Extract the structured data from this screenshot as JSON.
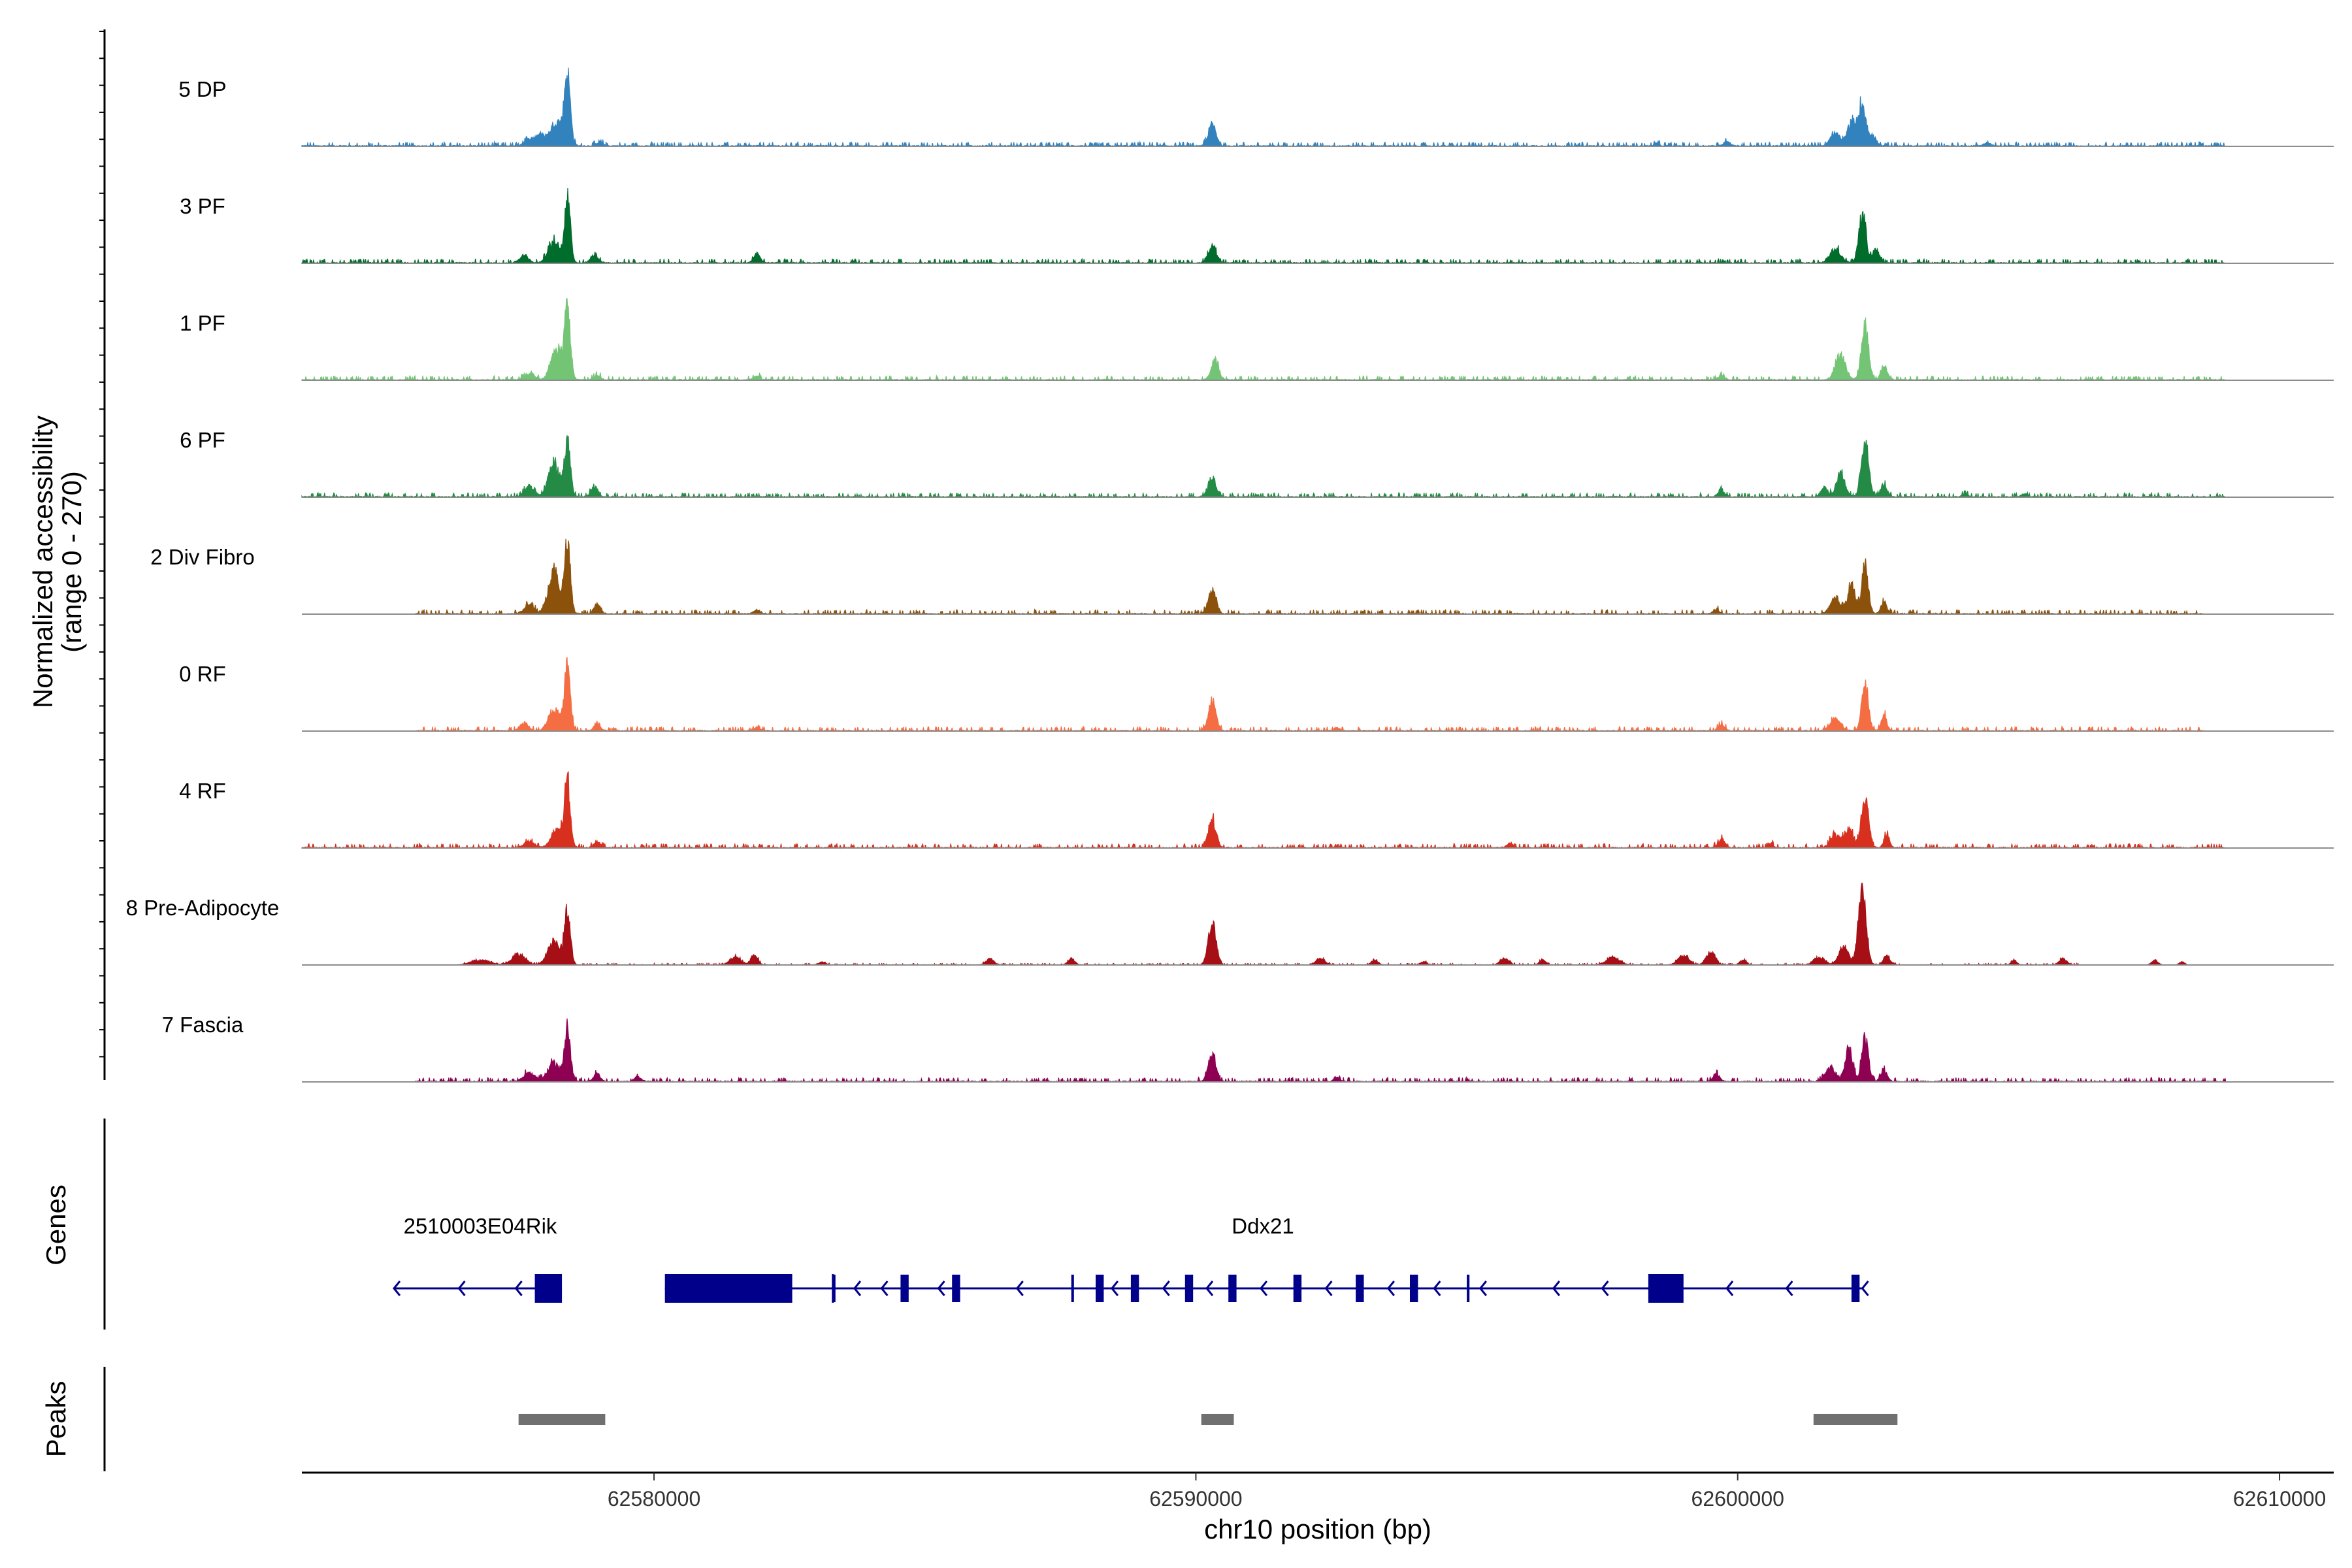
{
  "chart_data": {
    "type": "area",
    "title": "",
    "xlabel": "chr10 position (bp)",
    "ylabel_line1": "Normalized accessibility",
    "ylabel_line2": "(range 0 - 270)",
    "ylim": [
      0,
      270
    ],
    "xlim": [
      62573500,
      62611000
    ],
    "xticks": [
      62580000,
      62590000,
      62600000,
      62610000
    ],
    "xtick_labels": [
      "62580000",
      "62590000",
      "62600000",
      "62610000"
    ],
    "tracks": [
      {
        "name": "5 DP",
        "color": "#3182bd",
        "baseline": 8,
        "noise": [
          62573500,
          62609000
        ],
        "peaks": [
          [
            62578400,
            55,
            225
          ],
          [
            62578200,
            110,
            80
          ],
          [
            62577900,
            90,
            35
          ],
          [
            62577700,
            90,
            20
          ],
          [
            62579000,
            60,
            12
          ],
          [
            62590300,
            70,
            70
          ],
          [
            62601800,
            90,
            40
          ],
          [
            62602100,
            80,
            75
          ],
          [
            62602300,
            70,
            135
          ],
          [
            62602500,
            60,
            30
          ],
          [
            62599800,
            60,
            15
          ],
          [
            62598500,
            40,
            10
          ],
          [
            62604600,
            60,
            10
          ]
        ]
      },
      {
        "name": "3 PF",
        "color": "#006d2c",
        "baseline": 8,
        "noise": [
          62573500,
          62609000
        ],
        "peaks": [
          [
            62578400,
            55,
            210
          ],
          [
            62578150,
            100,
            70
          ],
          [
            62577600,
            80,
            25
          ],
          [
            62578900,
            70,
            25
          ],
          [
            62581900,
            60,
            30
          ],
          [
            62590300,
            70,
            55
          ],
          [
            62601800,
            100,
            45
          ],
          [
            62602300,
            65,
            160
          ],
          [
            62602550,
            60,
            45
          ]
        ]
      },
      {
        "name": "1 PF",
        "color": "#74c476",
        "baseline": 8,
        "noise": [
          62573500,
          62609000
        ],
        "peaks": [
          [
            62578400,
            55,
            230
          ],
          [
            62578200,
            100,
            100
          ],
          [
            62577700,
            90,
            20
          ],
          [
            62578950,
            60,
            15
          ],
          [
            62581900,
            60,
            12
          ],
          [
            62590350,
            70,
            60
          ],
          [
            62599700,
            60,
            15
          ],
          [
            62601900,
            90,
            80
          ],
          [
            62602350,
            65,
            175
          ],
          [
            62602700,
            60,
            45
          ]
        ]
      },
      {
        "name": "6 PF",
        "color": "#238b45",
        "baseline": 8,
        "noise": [
          62573500,
          62609000
        ],
        "peaks": [
          [
            62578400,
            55,
            180
          ],
          [
            62578150,
            100,
            110
          ],
          [
            62577700,
            90,
            35
          ],
          [
            62578900,
            60,
            35
          ],
          [
            62590300,
            70,
            65
          ],
          [
            62599700,
            60,
            20
          ],
          [
            62601600,
            60,
            30
          ],
          [
            62601900,
            80,
            75
          ],
          [
            62602350,
            65,
            200
          ],
          [
            62602700,
            60,
            40
          ],
          [
            62604200,
            50,
            10
          ],
          [
            62605300,
            50,
            10
          ]
        ]
      },
      {
        "name": "2 Div Fibro",
        "color": "#8c510a",
        "baseline": 8,
        "noise": [
          62575600,
          62608600
        ],
        "peaks": [
          [
            62578400,
            55,
            225
          ],
          [
            62578150,
            100,
            130
          ],
          [
            62577700,
            90,
            30
          ],
          [
            62578950,
            60,
            30
          ],
          [
            62581900,
            60,
            12
          ],
          [
            62590300,
            70,
            80
          ],
          [
            62599600,
            50,
            15
          ],
          [
            62601800,
            90,
            50
          ],
          [
            62602100,
            70,
            90
          ],
          [
            62602350,
            60,
            155
          ],
          [
            62602700,
            50,
            40
          ]
        ]
      },
      {
        "name": "0 RF",
        "color": "#f46d43",
        "baseline": 8,
        "noise": [
          62575600,
          62608600
        ],
        "peaks": [
          [
            62578400,
            55,
            205
          ],
          [
            62578150,
            100,
            70
          ],
          [
            62577600,
            80,
            25
          ],
          [
            62578950,
            60,
            20
          ],
          [
            62581900,
            60,
            10
          ],
          [
            62590300,
            70,
            90
          ],
          [
            62592600,
            50,
            10
          ],
          [
            62599700,
            60,
            20
          ],
          [
            62601800,
            90,
            40
          ],
          [
            62602350,
            60,
            165
          ],
          [
            62602700,
            50,
            50
          ]
        ]
      },
      {
        "name": "4 RF",
        "color": "#d7301f",
        "baseline": 8,
        "noise": [
          62573500,
          62609000
        ],
        "peaks": [
          [
            62578400,
            55,
            205
          ],
          [
            62578200,
            100,
            60
          ],
          [
            62577700,
            90,
            20
          ],
          [
            62578950,
            60,
            20
          ],
          [
            62590300,
            70,
            90
          ],
          [
            62595800,
            50,
            15
          ],
          [
            62599700,
            60,
            25
          ],
          [
            62601800,
            90,
            40
          ],
          [
            62602050,
            80,
            60
          ],
          [
            62602350,
            65,
            175
          ],
          [
            62602750,
            50,
            40
          ],
          [
            62600600,
            50,
            15
          ]
        ]
      },
      {
        "name": "8 Pre-Adipocyte",
        "color": "#a50f15",
        "baseline": 3,
        "noise": [
          62576500,
          62606300
        ],
        "peaks": [
          [
            62578400,
            55,
            175
          ],
          [
            62578150,
            110,
            75
          ],
          [
            62577500,
            120,
            35
          ],
          [
            62576800,
            180,
            15
          ],
          [
            62581500,
            100,
            25
          ],
          [
            62581850,
            60,
            35
          ],
          [
            62583100,
            60,
            10
          ],
          [
            62586200,
            70,
            20
          ],
          [
            62587700,
            60,
            20
          ],
          [
            62590300,
            70,
            140
          ],
          [
            62592300,
            80,
            20
          ],
          [
            62593300,
            60,
            15
          ],
          [
            62594200,
            60,
            10
          ],
          [
            62595700,
            80,
            20
          ],
          [
            62596400,
            60,
            15
          ],
          [
            62597700,
            120,
            25
          ],
          [
            62599000,
            100,
            30
          ],
          [
            62599500,
            80,
            40
          ],
          [
            62600100,
            60,
            15
          ],
          [
            62601500,
            100,
            25
          ],
          [
            62601950,
            90,
            60
          ],
          [
            62602300,
            70,
            250
          ],
          [
            62602750,
            60,
            30
          ],
          [
            62605100,
            50,
            15
          ],
          [
            62606000,
            70,
            20
          ],
          [
            62607700,
            60,
            15
          ],
          [
            62608200,
            50,
            10
          ]
        ]
      },
      {
        "name": "7 Fascia",
        "color": "#8e0152",
        "baseline": 8,
        "noise": [
          62575600,
          62609000
        ],
        "peaks": [
          [
            62578400,
            55,
            175
          ],
          [
            62578150,
            110,
            60
          ],
          [
            62577700,
            100,
            30
          ],
          [
            62578950,
            60,
            25
          ],
          [
            62579700,
            60,
            15
          ],
          [
            62590300,
            70,
            85
          ],
          [
            62592600,
            50,
            15
          ],
          [
            62599600,
            60,
            25
          ],
          [
            62601700,
            90,
            45
          ],
          [
            62602050,
            70,
            110
          ],
          [
            62602350,
            60,
            145
          ],
          [
            62602700,
            60,
            35
          ]
        ]
      }
    ],
    "genes_track_label": "Genes",
    "genes": [
      {
        "name": "2510003E04Rik",
        "strand": "-",
        "start": 62575200,
        "end": 62578700,
        "exons": [
          [
            62577800,
            62578300
          ]
        ]
      },
      {
        "name": "Ddx21",
        "strand": "-",
        "start": 62583300,
        "end": 62602300,
        "exons": [
          [
            62580200,
            62582550
          ],
          [
            62583300,
            62583350
          ],
          [
            62584550,
            62584700
          ],
          [
            62585500,
            62585650
          ],
          [
            62587700,
            62587750
          ],
          [
            62588150,
            62588300
          ],
          [
            62588800,
            62588950
          ],
          [
            62589800,
            62589950
          ],
          [
            62590600,
            62590750
          ],
          [
            62591800,
            62591950
          ],
          [
            62592950,
            62593100
          ],
          [
            62593950,
            62594100
          ],
          [
            62595000,
            62595050
          ],
          [
            62598350,
            62599000
          ],
          [
            62602100,
            62602250
          ]
        ]
      }
    ],
    "peaks_track_label": "Peaks",
    "peaks": [
      [
        62577500,
        62579100
      ],
      [
        62590100,
        62590700
      ],
      [
        62601400,
        62602950
      ]
    ]
  }
}
